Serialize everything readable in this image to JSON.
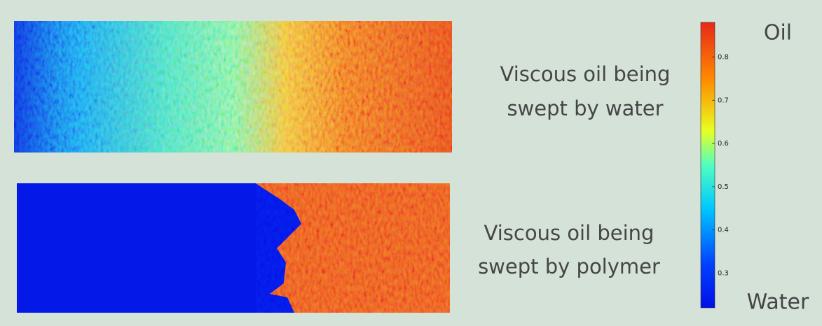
{
  "panels": [
    {
      "caption": [
        "Viscous oil being",
        "swept by water"
      ]
    },
    {
      "caption": [
        "Viscous oil being",
        "swept by polymer"
      ]
    }
  ],
  "colorbar": {
    "top_label": "Oil",
    "bottom_label": "Water",
    "lim": [
      0.22,
      0.88
    ],
    "ticks": [
      0.3,
      0.4,
      0.5,
      0.6,
      0.7,
      0.8
    ]
  }
}
